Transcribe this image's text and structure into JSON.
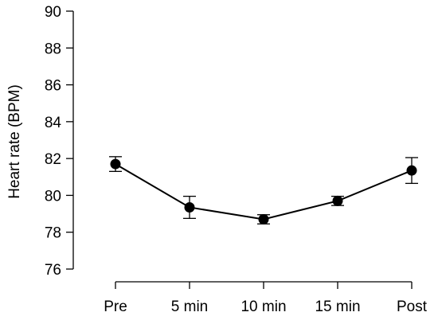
{
  "chart_data": {
    "type": "line",
    "title": "",
    "xlabel": "",
    "ylabel": "Heart rate (BPM)",
    "categories": [
      "Pre",
      "5 min",
      "10 min",
      "15 min",
      "Post"
    ],
    "yticks": [
      "76",
      "78",
      "80",
      "82",
      "84",
      "86",
      "88",
      "90"
    ],
    "ylim": [
      76,
      90
    ],
    "grid": false,
    "series": [
      {
        "values": [
          81.7,
          79.35,
          78.7,
          79.7,
          81.35
        ],
        "error": [
          0.4,
          0.6,
          0.25,
          0.25,
          0.7
        ],
        "color": "#000000"
      }
    ]
  }
}
